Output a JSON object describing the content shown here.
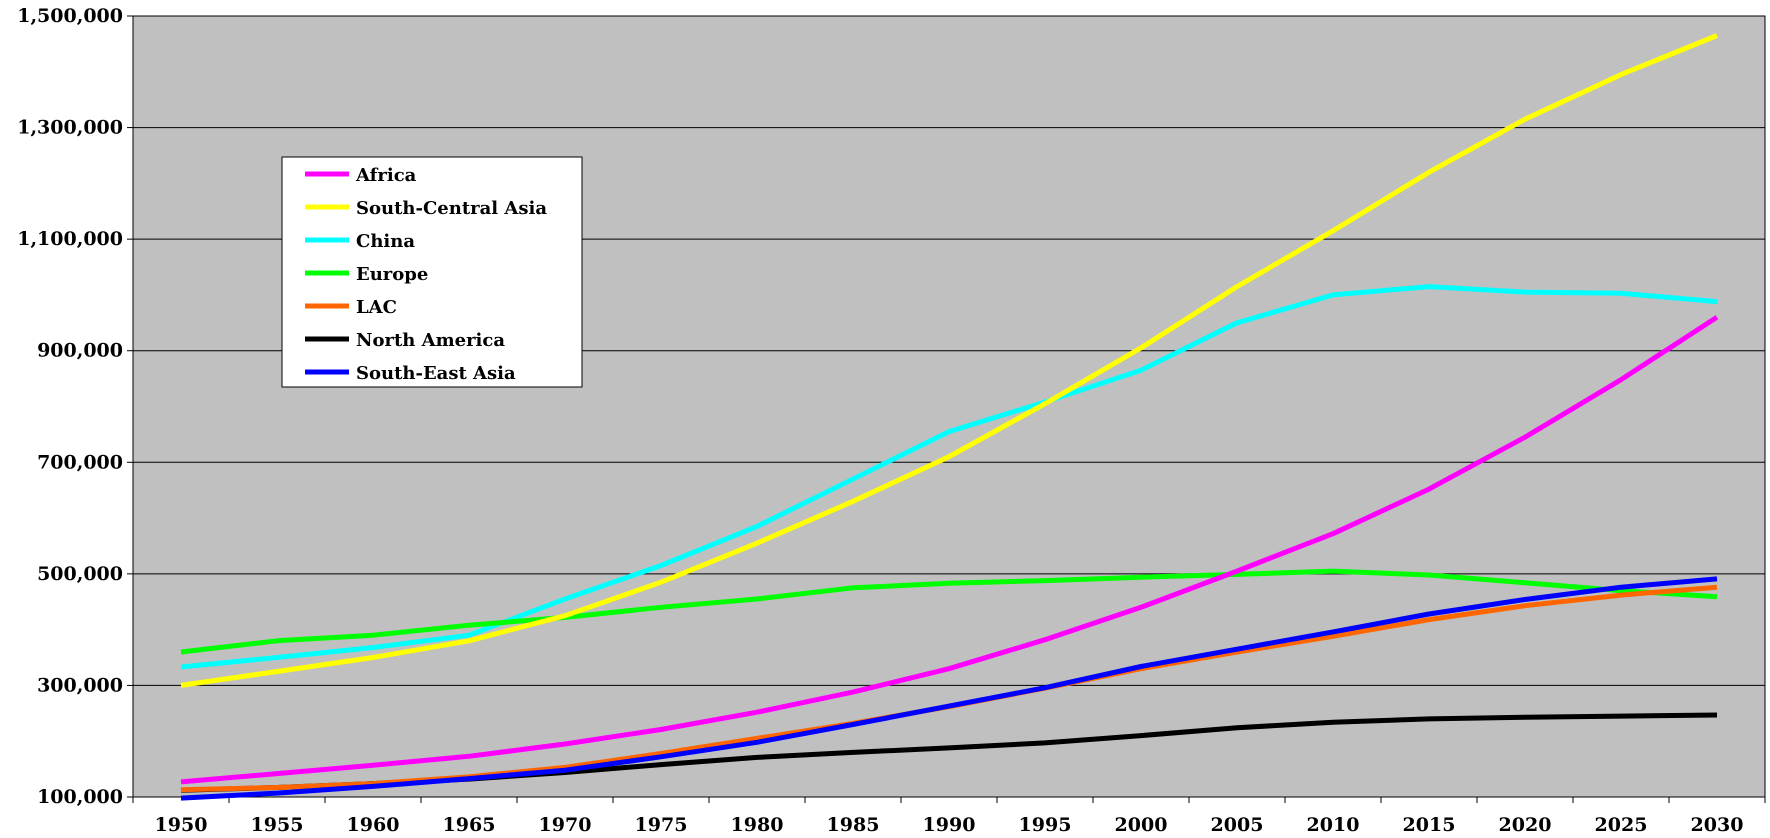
{
  "chart_data": {
    "type": "line",
    "title": "",
    "xlabel": "",
    "ylabel": "",
    "categories": [
      "1950",
      "1955",
      "1960",
      "1965",
      "1970",
      "1975",
      "1980",
      "1985",
      "1990",
      "1995",
      "2000",
      "2005",
      "2010",
      "2015",
      "2020",
      "2025",
      "2030"
    ],
    "ylim": [
      100000,
      1500000
    ],
    "yticks": [
      "100,000",
      "300,000",
      "500,000",
      "700,000",
      "900,000",
      "1,100,000",
      "1,300,000",
      "1,500,000"
    ],
    "ytick_values": [
      100000,
      300000,
      500000,
      700000,
      900000,
      1100000,
      1300000,
      1500000
    ],
    "grid": true,
    "plot_background": "#c0c0c0",
    "legend_position": "top-left",
    "series": [
      {
        "name": "Africa",
        "color": "#ff00ff",
        "values": [
          127000,
          142000,
          157000,
          173000,
          195000,
          221000,
          252000,
          288000,
          330000,
          382000,
          440000,
          505000,
          572000,
          652000,
          745000,
          848000,
          960000
        ]
      },
      {
        "name": "South-Central Asia",
        "color": "#ffff00",
        "values": [
          300000,
          325000,
          350000,
          380000,
          425000,
          485000,
          555000,
          630000,
          710000,
          805000,
          905000,
          1015000,
          1115000,
          1220000,
          1315000,
          1395000,
          1465000
        ]
      },
      {
        "name": "China",
        "color": "#00ffff",
        "values": [
          333000,
          350000,
          368000,
          390000,
          455000,
          515000,
          585000,
          670000,
          755000,
          808000,
          865000,
          950000,
          1000000,
          1015000,
          1005000,
          1003000,
          988000
        ]
      },
      {
        "name": "Europe",
        "color": "#00ff00",
        "values": [
          360000,
          380000,
          390000,
          408000,
          422000,
          440000,
          455000,
          475000,
          483000,
          488000,
          494000,
          499000,
          505000,
          498000,
          484000,
          470000,
          459000
        ]
      },
      {
        "name": "LAC",
        "color": "#ff6600",
        "values": [
          113000,
          117000,
          124000,
          136000,
          153000,
          178000,
          205000,
          232000,
          262000,
          295000,
          330000,
          360000,
          388000,
          418000,
          443000,
          462000,
          476000
        ]
      },
      {
        "name": "North America",
        "color": "#000000",
        "values": [
          112000,
          117000,
          124000,
          132000,
          144000,
          158000,
          171000,
          180000,
          188000,
          197000,
          210000,
          224000,
          234000,
          240000,
          243000,
          245000,
          247000
        ]
      },
      {
        "name": "South-East Asia",
        "color": "#0000ff",
        "values": [
          98000,
          107000,
          119000,
          133000,
          148000,
          172000,
          198000,
          230000,
          263000,
          296000,
          334000,
          365000,
          396000,
          428000,
          454000,
          476000,
          491000
        ]
      }
    ]
  }
}
